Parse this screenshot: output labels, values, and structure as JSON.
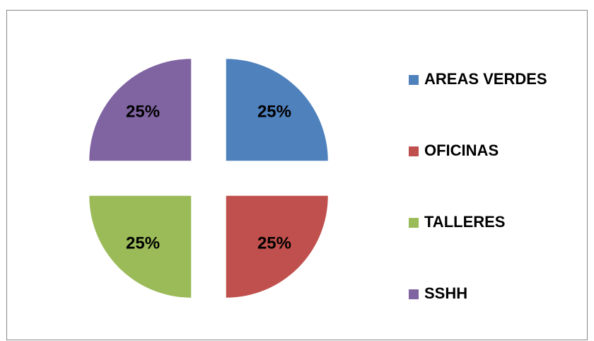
{
  "chart_data": {
    "type": "pie",
    "categories": [
      "AREAS VERDES",
      "OFICINAS",
      "TALLERES",
      "SSHH"
    ],
    "values": [
      25,
      25,
      25,
      25
    ],
    "value_labels": [
      "25%",
      "25%",
      "25%",
      "25%"
    ],
    "colors": [
      "#4f81bd",
      "#c0504d",
      "#9bbb59",
      "#8064a2"
    ],
    "legend": "right"
  }
}
